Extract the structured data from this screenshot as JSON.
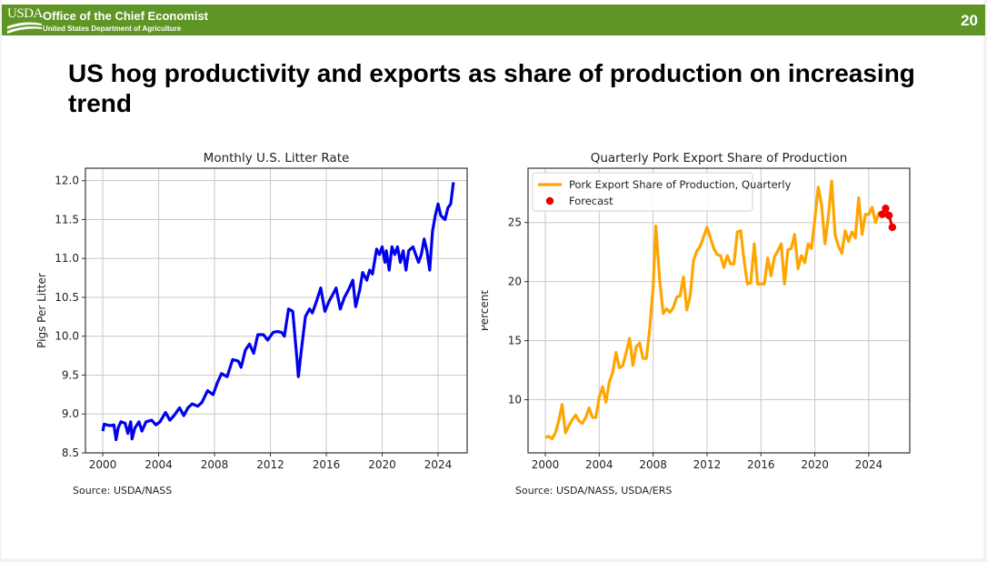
{
  "header": {
    "logo_text": "USDA",
    "office": "Office of the Chief Economist",
    "department": "United States Department of Agriculture",
    "page_number": "20",
    "banner_color": "#5f9524"
  },
  "slide_title": "US hog productivity and exports as share of production on increasing trend",
  "chart_data": [
    {
      "type": "line",
      "title": "Monthly U.S. Litter Rate",
      "xlabel": "",
      "ylabel": "Pigs Per Litter",
      "xlim": [
        1998.76,
        2026.08
      ],
      "ylim": [
        8.5,
        12.16
      ],
      "xticks": [
        2000,
        2004,
        2008,
        2012,
        2016,
        2020,
        2024
      ],
      "xtick_labels": [
        "2000",
        "2004",
        "2008",
        "2012",
        "2016",
        "2020",
        "2024"
      ],
      "yticks": [
        8.5,
        9.0,
        9.5,
        10.0,
        10.5,
        11.0,
        11.5,
        12.0
      ],
      "ytick_labels": [
        "8.5",
        "9.0",
        "9.5",
        "10.0",
        "10.5",
        "11.0",
        "11.5",
        "12.0"
      ],
      "grid": true,
      "source": "Source: USDA/NASS",
      "series": [
        {
          "name": "Litter rate",
          "color": "#0000ee",
          "x": [
            2000.0,
            2000.1,
            2000.5,
            2000.8,
            2000.95,
            2001.1,
            2001.3,
            2001.6,
            2001.8,
            2002.0,
            2002.1,
            2002.3,
            2002.6,
            2002.8,
            2003.1,
            2003.5,
            2003.8,
            2004.1,
            2004.5,
            2004.8,
            2005.1,
            2005.5,
            2005.8,
            2006.1,
            2006.4,
            2006.8,
            2007.1,
            2007.5,
            2007.9,
            2008.2,
            2008.5,
            2008.9,
            2009.3,
            2009.7,
            2009.9,
            2010.2,
            2010.5,
            2010.8,
            2011.1,
            2011.5,
            2011.8,
            2012.2,
            2012.5,
            2012.8,
            2013.0,
            2013.3,
            2013.6,
            2013.9,
            2014.0,
            2014.2,
            2014.5,
            2014.8,
            2015.0,
            2015.3,
            2015.6,
            2015.9,
            2016.2,
            2016.5,
            2016.7,
            2017.0,
            2017.3,
            2017.6,
            2017.9,
            2018.1,
            2018.4,
            2018.6,
            2018.9,
            2019.1,
            2019.3,
            2019.6,
            2019.8,
            2020.0,
            2020.2,
            2020.3,
            2020.5,
            2020.7,
            2020.9,
            2021.1,
            2021.3,
            2021.5,
            2021.7,
            2021.9,
            2022.2,
            2022.4,
            2022.6,
            2022.8,
            2023.0,
            2023.2,
            2023.4,
            2023.6,
            2023.8,
            2024.0,
            2024.2,
            2024.5,
            2024.7,
            2024.9,
            2025.1
          ],
          "y": [
            8.78,
            8.87,
            8.85,
            8.86,
            8.67,
            8.82,
            8.9,
            8.88,
            8.75,
            8.9,
            8.68,
            8.82,
            8.9,
            8.78,
            8.9,
            8.92,
            8.86,
            8.9,
            9.02,
            8.92,
            8.98,
            9.08,
            8.98,
            9.08,
            9.13,
            9.1,
            9.15,
            9.3,
            9.25,
            9.4,
            9.52,
            9.48,
            9.7,
            9.68,
            9.6,
            9.82,
            9.9,
            9.78,
            10.02,
            10.02,
            9.95,
            10.05,
            10.06,
            10.05,
            10.0,
            10.35,
            10.32,
            9.7,
            9.48,
            9.8,
            10.25,
            10.35,
            10.3,
            10.45,
            10.62,
            10.32,
            10.45,
            10.55,
            10.62,
            10.35,
            10.5,
            10.6,
            10.72,
            10.38,
            10.6,
            10.82,
            10.72,
            10.85,
            10.8,
            11.12,
            11.05,
            11.15,
            10.95,
            11.1,
            10.85,
            11.15,
            11.05,
            11.15,
            10.95,
            11.1,
            10.85,
            11.1,
            11.15,
            11.05,
            10.95,
            11.05,
            11.25,
            11.1,
            10.85,
            11.35,
            11.55,
            11.7,
            11.55,
            11.5,
            11.65,
            11.7,
            11.98
          ]
        }
      ]
    },
    {
      "type": "line",
      "title": "Quarterly Pork Export Share of Production",
      "xlabel": "",
      "ylabel": "Percent",
      "xlim": [
        1998.72,
        2027.04
      ],
      "ylim": [
        5.5,
        29.6
      ],
      "xticks": [
        2000,
        2004,
        2008,
        2012,
        2016,
        2020,
        2024
      ],
      "xtick_labels": [
        "2000",
        "2004",
        "2008",
        "2012",
        "2016",
        "2020",
        "2024"
      ],
      "yticks": [
        10,
        15,
        20,
        25
      ],
      "ytick_labels": [
        "10",
        "15",
        "20",
        "25"
      ],
      "grid": true,
      "legend_position": "top-left",
      "source": "Source: USDA/NASS, USDA/ERS",
      "series": [
        {
          "name": "Pork Export Share of Production, Quarterly",
          "color": "#ffa500",
          "x": [
            2000.0,
            2000.25,
            2000.5,
            2000.75,
            2001.0,
            2001.25,
            2001.5,
            2001.75,
            2002.0,
            2002.25,
            2002.5,
            2002.75,
            2003.0,
            2003.25,
            2003.5,
            2003.75,
            2004.0,
            2004.25,
            2004.5,
            2004.75,
            2005.0,
            2005.25,
            2005.5,
            2005.75,
            2006.0,
            2006.25,
            2006.5,
            2006.75,
            2007.0,
            2007.25,
            2007.5,
            2007.75,
            2008.0,
            2008.2,
            2008.5,
            2008.75,
            2009.0,
            2009.25,
            2009.5,
            2009.75,
            2010.0,
            2010.25,
            2010.5,
            2010.75,
            2011.0,
            2011.25,
            2011.5,
            2012.0,
            2012.5,
            2012.75,
            2013.0,
            2013.25,
            2013.5,
            2013.75,
            2014.0,
            2014.25,
            2014.5,
            2014.75,
            2015.0,
            2015.25,
            2015.5,
            2015.75,
            2016.0,
            2016.25,
            2016.5,
            2016.75,
            2017.0,
            2017.25,
            2017.5,
            2017.75,
            2018.0,
            2018.25,
            2018.5,
            2018.75,
            2019.0,
            2019.25,
            2019.5,
            2019.75,
            2020.0,
            2020.25,
            2020.5,
            2020.75,
            2021.0,
            2021.25,
            2021.5,
            2021.75,
            2022.0,
            2022.25,
            2022.5,
            2022.75,
            2023.0,
            2023.25,
            2023.5,
            2023.75,
            2024.0,
            2024.25,
            2024.5,
            2024.75,
            2025.0
          ],
          "y": [
            6.8,
            6.9,
            6.7,
            7.2,
            8.2,
            9.6,
            7.2,
            7.8,
            8.3,
            8.7,
            8.2,
            8.0,
            8.5,
            9.3,
            8.5,
            8.5,
            10.2,
            11.1,
            9.8,
            11.5,
            12.3,
            14.0,
            12.7,
            12.9,
            14.0,
            15.2,
            12.9,
            14.5,
            14.8,
            13.5,
            13.5,
            16.0,
            19.5,
            24.7,
            20.0,
            17.3,
            17.7,
            17.4,
            17.8,
            18.7,
            18.8,
            20.4,
            17.6,
            18.8,
            21.8,
            22.6,
            23.0,
            24.6,
            22.8,
            22.3,
            22.2,
            21.2,
            22.2,
            21.5,
            21.5,
            24.2,
            24.3,
            21.8,
            19.8,
            19.9,
            23.2,
            19.8,
            19.8,
            19.8,
            22.0,
            20.5,
            22.1,
            22.6,
            23.2,
            19.8,
            22.7,
            22.8,
            24.0,
            21.1,
            22.2,
            21.6,
            23.2,
            22.8,
            25.3,
            28.0,
            26.5,
            23.2,
            25.5,
            28.5,
            24.0,
            23.0,
            22.4,
            24.3,
            23.4,
            24.2,
            23.7,
            27.1,
            24.0,
            25.7,
            25.7,
            26.3,
            25.0,
            25.8,
            25.9
          ]
        },
        {
          "name": "Forecast",
          "color": "#ee0000",
          "x": [
            2025.0,
            2025.25,
            2025.5,
            2025.75
          ],
          "y": [
            25.7,
            26.2,
            25.6,
            24.6
          ]
        }
      ]
    }
  ]
}
